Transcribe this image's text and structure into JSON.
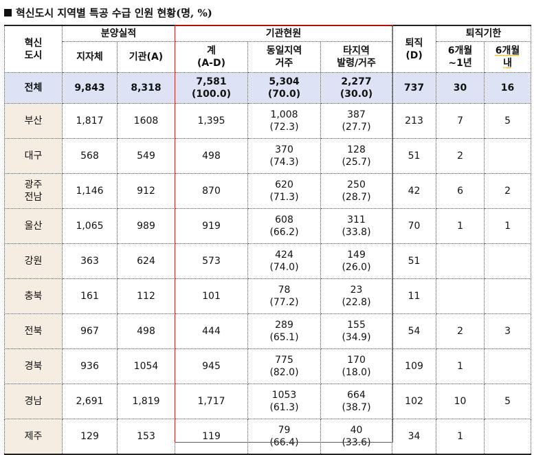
{
  "title": "혁신도시 지역별 특공 수급 인원 현황(명, %)",
  "header": {
    "region": [
      "혁신",
      "도시"
    ],
    "bunyang": "분양실적",
    "jijache": "지자체",
    "gigwan_a": "기관(A)",
    "gigwan_hyeonwon": "기관현원",
    "gye": [
      "계",
      "(A-D)"
    ],
    "dongil": [
      "동일지역",
      "거주"
    ],
    "taji": [
      "타지역",
      "발령/거주"
    ],
    "toejik": [
      "퇴직",
      "(D)"
    ],
    "toejik_gihan": "퇴직기한",
    "m6_1y": [
      "6개월",
      "~1년"
    ],
    "m6_in": [
      "6개월",
      "내"
    ]
  },
  "total": {
    "region": "전체",
    "jijache": "9,843",
    "gigwan": "8,318",
    "gye": [
      "7,581",
      "(100.0)"
    ],
    "dongil": [
      "5,304",
      "(70.0)"
    ],
    "taji": [
      "2,277",
      "(30.0)"
    ],
    "toejik": "737",
    "m6_1y": "30",
    "m6_in": "16"
  },
  "rows": [
    {
      "region": [
        "부산"
      ],
      "jijache": "1,817",
      "gigwan": "1608",
      "gye": "1,395",
      "dongil": [
        "1,008",
        "(72.3)"
      ],
      "taji": [
        "387",
        "(27.7)"
      ],
      "toejik": "213",
      "m6_1y": "7",
      "m6_in": "5"
    },
    {
      "region": [
        "대구"
      ],
      "jijache": "568",
      "gigwan": "549",
      "gye": "498",
      "dongil": [
        "370",
        "(74.3)"
      ],
      "taji": [
        "128",
        "(25.7)"
      ],
      "toejik": "51",
      "m6_1y": "2",
      "m6_in": ""
    },
    {
      "region": [
        "광주",
        "전남"
      ],
      "jijache": "1,146",
      "gigwan": "912",
      "gye": "870",
      "dongil": [
        "620",
        "(71.3)"
      ],
      "taji": [
        "250",
        "(28.7)"
      ],
      "toejik": "42",
      "m6_1y": "6",
      "m6_in": "2"
    },
    {
      "region": [
        "울산"
      ],
      "jijache": "1,065",
      "gigwan": "989",
      "gye": "919",
      "dongil": [
        "608",
        "(66.2)"
      ],
      "taji": [
        "311",
        "(33.8)"
      ],
      "toejik": "70",
      "m6_1y": "1",
      "m6_in": "1"
    },
    {
      "region": [
        "강원"
      ],
      "jijache": "363",
      "gigwan": "624",
      "gye": "573",
      "dongil": [
        "424",
        "(74.0)"
      ],
      "taji": [
        "149",
        "(26.0)"
      ],
      "toejik": "51",
      "m6_1y": "",
      "m6_in": ""
    },
    {
      "region": [
        "충북"
      ],
      "jijache": "161",
      "gigwan": "112",
      "gye": "101",
      "dongil": [
        "78",
        "(77.2)"
      ],
      "taji": [
        "23",
        "(22.8)"
      ],
      "toejik": "11",
      "m6_1y": "",
      "m6_in": ""
    },
    {
      "region": [
        "전북"
      ],
      "jijache": "967",
      "gigwan": "498",
      "gye": "444",
      "dongil": [
        "289",
        "(65.1)"
      ],
      "taji": [
        "155",
        "(34.9)"
      ],
      "toejik": "54",
      "m6_1y": "2",
      "m6_in": "3"
    },
    {
      "region": [
        "경북"
      ],
      "jijache": "936",
      "gigwan": "1054",
      "gye": "945",
      "dongil": [
        "775",
        "(82.0)"
      ],
      "taji": [
        "170",
        "(18.0)"
      ],
      "toejik": "109",
      "m6_1y": "1",
      "m6_in": ""
    },
    {
      "region": [
        "경남"
      ],
      "jijache": "2,691",
      "gigwan": "1,819",
      "gye": "1,717",
      "dongil": [
        "1053",
        "(61.3)"
      ],
      "taji": [
        "664",
        "(38.7)"
      ],
      "toejik": "102",
      "m6_1y": "10",
      "m6_in": "5"
    },
    {
      "region": [
        "제주"
      ],
      "jijache": "129",
      "gigwan": "153",
      "gye": "119",
      "dongil": [
        "79",
        "(66.4)"
      ],
      "taji": [
        "40",
        "(33.6)"
      ],
      "toejik": "34",
      "m6_1y": "1",
      "m6_in": ""
    }
  ]
}
